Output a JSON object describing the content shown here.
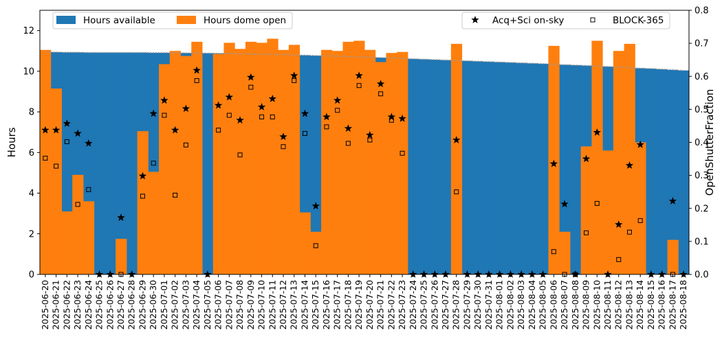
{
  "chart_data": {
    "type": "bar",
    "title": "",
    "ylabel": "Hours",
    "y2label": "OpenShutterFraction",
    "ylim": [
      0,
      13
    ],
    "y2lim": [
      0,
      0.8
    ],
    "yticks": [
      0,
      2,
      4,
      6,
      8,
      10,
      12
    ],
    "y2ticks": [
      "0.0",
      "0.1",
      "0.2",
      "0.3",
      "0.4",
      "0.5",
      "0.6",
      "0.7",
      "0.8"
    ],
    "legend_left": "upper-left",
    "legend_right": "upper-right",
    "colors": {
      "available": "#1f77b4",
      "dome": "#ff7f0e",
      "markers": "#000000",
      "avail_line": "#999999"
    },
    "categories": [
      "2025-06-20",
      "2025-06-21",
      "2025-06-22",
      "2025-06-23",
      "2025-06-24",
      "2025-06-25",
      "2025-06-26",
      "2025-06-27",
      "2025-06-28",
      "2025-06-29",
      "2025-06-30",
      "2025-07-01",
      "2025-07-02",
      "2025-07-03",
      "2025-07-04",
      "2025-07-05",
      "2025-07-06",
      "2025-07-07",
      "2025-07-08",
      "2025-07-09",
      "2025-07-10",
      "2025-07-11",
      "2025-07-12",
      "2025-07-13",
      "2025-07-14",
      "2025-07-15",
      "2025-07-16",
      "2025-07-17",
      "2025-07-18",
      "2025-07-19",
      "2025-07-20",
      "2025-07-21",
      "2025-07-22",
      "2025-07-23",
      "2025-07-24",
      "2025-07-25",
      "2025-07-26",
      "2025-07-27",
      "2025-07-28",
      "2025-07-29",
      "2025-07-30",
      "2025-07-31",
      "2025-08-01",
      "2025-08-02",
      "2025-08-03",
      "2025-08-04",
      "2025-08-05",
      "2025-08-06",
      "2025-08-07",
      "2025-08-08",
      "2025-08-09",
      "2025-08-10",
      "2025-08-11",
      "2025-08-12",
      "2025-08-13",
      "2025-08-14",
      "2025-08-15",
      "2025-08-16",
      "2025-08-17",
      "2025-08-18"
    ],
    "series": [
      {
        "name": "Hours available",
        "axis": "left",
        "values": [
          10.95,
          10.94,
          10.93,
          10.93,
          10.92,
          10.92,
          10.92,
          10.92,
          10.92,
          10.92,
          10.91,
          10.91,
          10.91,
          10.9,
          10.9,
          10.89,
          10.88,
          10.87,
          10.86,
          10.85,
          10.84,
          10.83,
          10.82,
          10.8,
          10.79,
          10.77,
          10.76,
          10.74,
          10.72,
          10.71,
          10.69,
          10.67,
          10.65,
          10.63,
          10.61,
          10.59,
          10.57,
          10.55,
          10.53,
          10.51,
          10.49,
          10.47,
          10.45,
          10.43,
          10.41,
          10.39,
          10.37,
          10.34,
          10.32,
          10.3,
          10.28,
          10.25,
          10.23,
          10.2,
          10.18,
          10.15,
          10.13,
          10.1,
          10.07,
          10.04
        ]
      },
      {
        "name": "Hours dome open",
        "axis": "left",
        "values": [
          11.05,
          9.15,
          3.1,
          4.9,
          3.6,
          0,
          0,
          1.75,
          0,
          7.05,
          5.05,
          10.35,
          11.0,
          10.75,
          11.45,
          0,
          10.85,
          11.4,
          11.1,
          11.45,
          11.4,
          11.6,
          11.05,
          11.3,
          3.05,
          2.1,
          11.05,
          11.0,
          11.45,
          11.5,
          11.05,
          10.45,
          10.9,
          10.95,
          0,
          0,
          0,
          0,
          11.35,
          0,
          0,
          0,
          0,
          0,
          0,
          0,
          0,
          11.25,
          2.1,
          0,
          6.3,
          11.5,
          6.1,
          11.0,
          11.35,
          6.5,
          0,
          0,
          1.7,
          0
        ]
      },
      {
        "name": "Acq+Sci on-sky",
        "axis": "right",
        "values": [
          0.437,
          0.437,
          0.457,
          0.427,
          0.397,
          0,
          0,
          0.172,
          0,
          0.298,
          0.487,
          0.527,
          0.437,
          0.502,
          0.618,
          0,
          0.512,
          0.537,
          0.467,
          0.597,
          0.507,
          0.532,
          0.417,
          0.602,
          0.487,
          0.207,
          0.477,
          0.527,
          0.442,
          0.602,
          0.422,
          0.577,
          0.477,
          0.472,
          0,
          0,
          0,
          0,
          0.407,
          0,
          0,
          0,
          0,
          0,
          0,
          0,
          0,
          0.335,
          0.213,
          0,
          0.35,
          0.43,
          0,
          0.151,
          0.33,
          0.393,
          0,
          0,
          0.222,
          0
        ]
      },
      {
        "name": "BLOCK-365",
        "axis": "right",
        "values": [
          0.352,
          0.328,
          0.402,
          0.212,
          0.257,
          null,
          null,
          0,
          null,
          0.237,
          0.337,
          0.482,
          0.24,
          0.392,
          0.587,
          null,
          0.437,
          0.482,
          0.362,
          0.567,
          0.477,
          0.477,
          0.387,
          0.587,
          0.427,
          0.087,
          0.447,
          0.497,
          0.397,
          0.572,
          0.407,
          0.547,
          0.467,
          0.367,
          null,
          null,
          null,
          null,
          0.25,
          null,
          null,
          null,
          null,
          null,
          null,
          null,
          null,
          0.069,
          0,
          0,
          0.126,
          0.215,
          null,
          0.045,
          0.128,
          0.163,
          null,
          null,
          0,
          null
        ]
      }
    ]
  }
}
